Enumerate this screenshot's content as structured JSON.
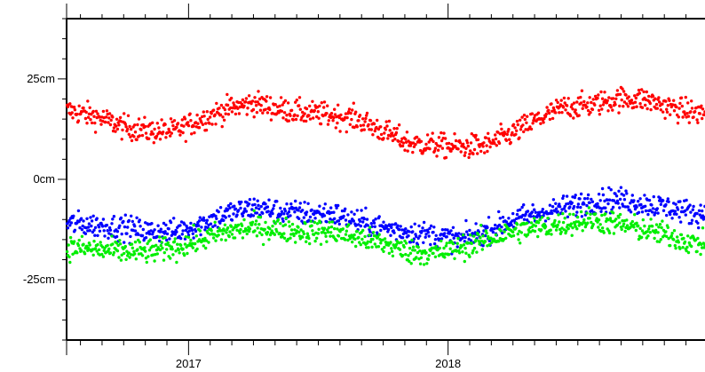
{
  "chart_data": {
    "type": "scatter",
    "title": "",
    "xlabel": "",
    "ylabel": "",
    "x_unit": "year",
    "xlim": [
      2016.53,
      2018.99
    ],
    "ylim": [
      -40,
      40
    ],
    "y_ticks": [
      {
        "value": 25,
        "label": "25cm"
      },
      {
        "value": 0,
        "label": "0cm"
      },
      {
        "value": -25,
        "label": "-25cm"
      }
    ],
    "x_ticks": [
      {
        "value": 2017.0,
        "label": "2017"
      },
      {
        "value": 2018.0,
        "label": "2018"
      }
    ],
    "grid": false,
    "series": [
      {
        "color": "#ff0000",
        "x": [
          2016.55,
          2016.65,
          2016.75,
          2016.85,
          2016.95,
          2017.05,
          2017.15,
          2017.25,
          2017.35,
          2017.45,
          2017.55,
          2017.65,
          2017.75,
          2017.85,
          2017.95,
          2018.05,
          2018.15,
          2018.25,
          2018.35,
          2018.45,
          2018.55,
          2018.65,
          2018.75,
          2018.85,
          2018.95
        ],
        "values": [
          17,
          15.5,
          13,
          12,
          12,
          15,
          17.5,
          19,
          17.5,
          16.5,
          16,
          15,
          12,
          9,
          8.5,
          8,
          8.5,
          11.5,
          15,
          18,
          18.5,
          20,
          20,
          18,
          16.5
        ]
      },
      {
        "color": "#0000ff",
        "x": [
          2016.55,
          2016.65,
          2016.75,
          2016.85,
          2016.95,
          2017.05,
          2017.15,
          2017.25,
          2017.35,
          2017.45,
          2017.55,
          2017.65,
          2017.75,
          2017.85,
          2017.95,
          2018.05,
          2018.15,
          2018.25,
          2018.35,
          2018.45,
          2018.55,
          2018.65,
          2018.75,
          2018.85,
          2018.95
        ],
        "values": [
          -11,
          -11.5,
          -12,
          -13,
          -13,
          -11,
          -8.5,
          -7,
          -8,
          -8.5,
          -8.5,
          -10.5,
          -12,
          -13,
          -14,
          -15,
          -13,
          -10,
          -8.5,
          -7,
          -5.5,
          -5,
          -6,
          -7,
          -8.5
        ]
      },
      {
        "color": "#00ee00",
        "x": [
          2016.55,
          2016.65,
          2016.75,
          2016.85,
          2016.95,
          2017.05,
          2017.15,
          2017.25,
          2017.35,
          2017.45,
          2017.55,
          2017.65,
          2017.75,
          2017.85,
          2017.95,
          2018.05,
          2018.15,
          2018.25,
          2018.35,
          2018.45,
          2018.55,
          2018.65,
          2018.75,
          2018.85,
          2018.95
        ],
        "values": [
          -17,
          -17.5,
          -18,
          -18,
          -17,
          -15,
          -13,
          -12,
          -12.5,
          -13,
          -13,
          -14.5,
          -16,
          -18,
          -18.5,
          -17,
          -15,
          -13,
          -12,
          -11,
          -10,
          -11,
          -12.5,
          -14,
          -16
        ]
      }
    ]
  }
}
